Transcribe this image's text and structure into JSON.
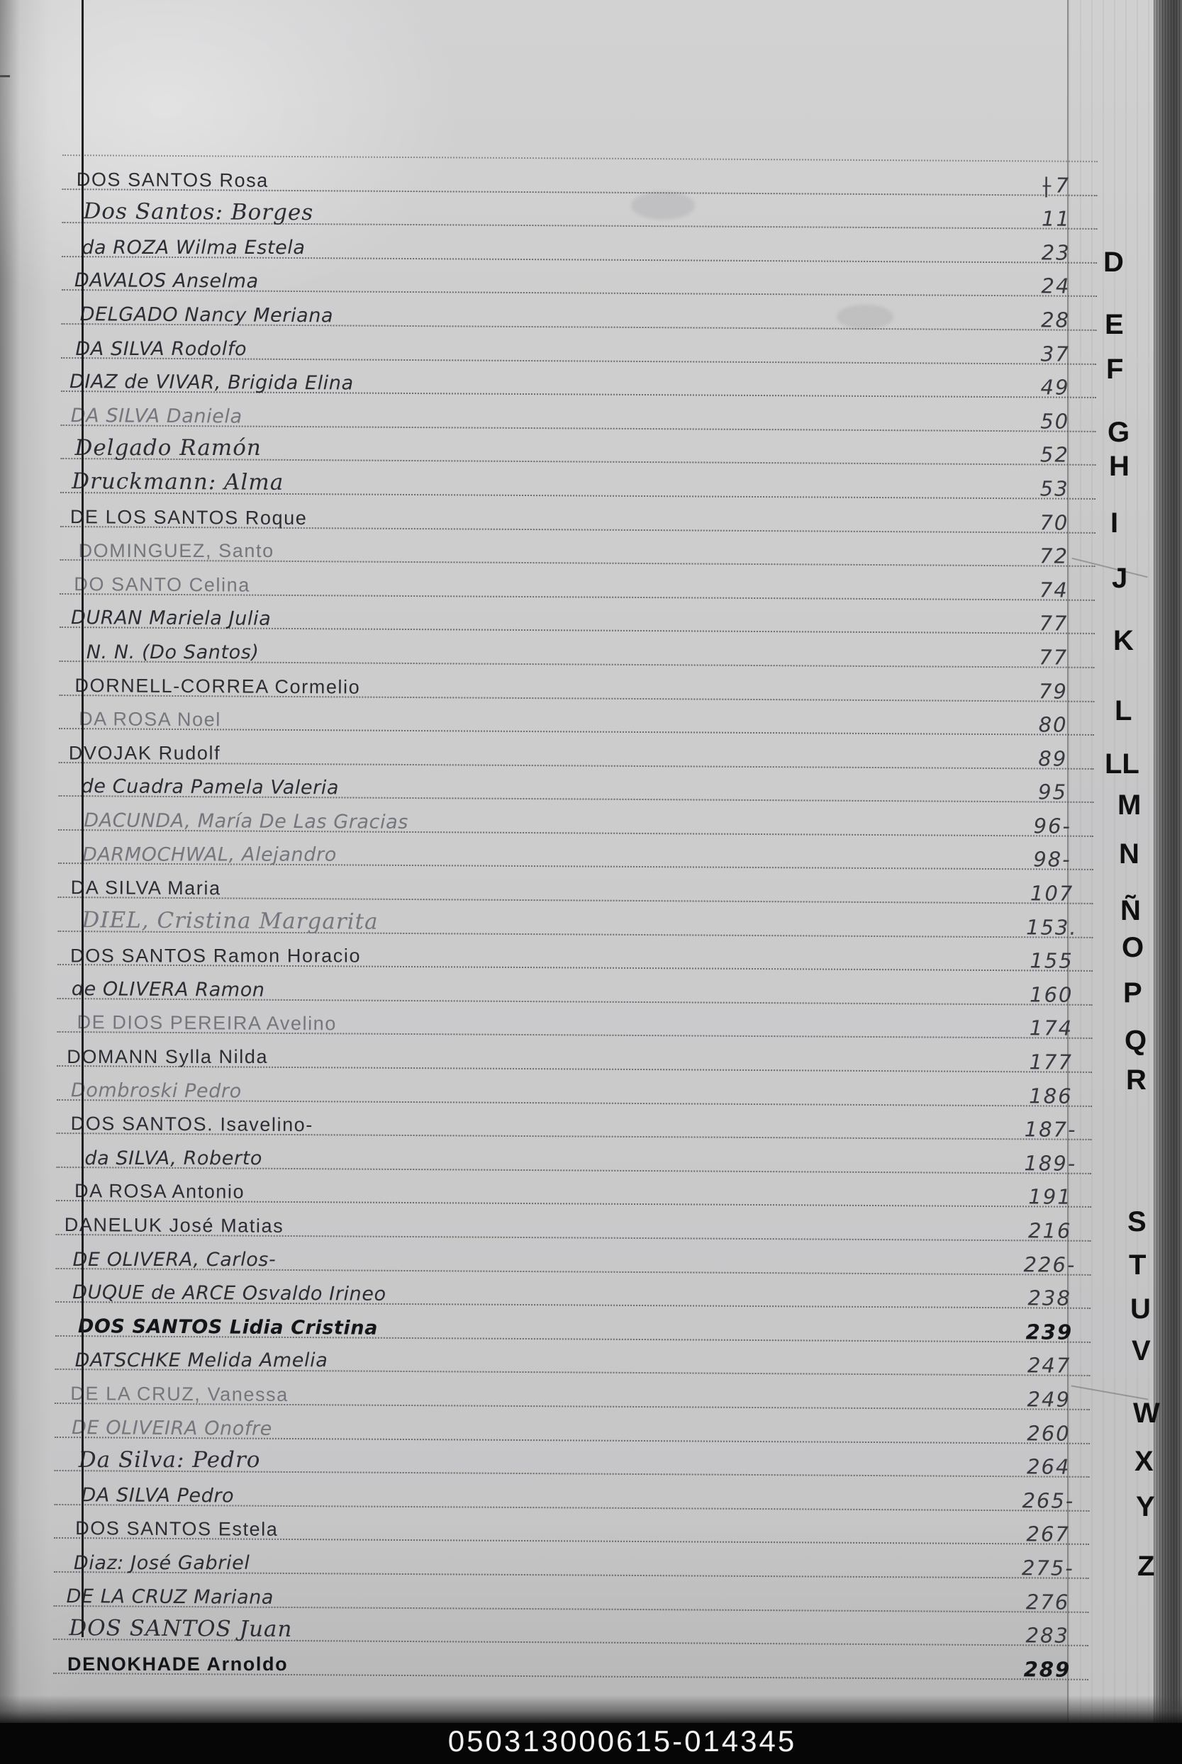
{
  "page": {
    "kind": "Scanned handwritten alphabetical index page - letter D",
    "footer_code": "050313000615-014345"
  },
  "index": {
    "entries": [
      {
        "name": "DOS SANTOS Rosa",
        "page": "7",
        "prefix": "|",
        "style": "caps",
        "indent": 8,
        "ink": "normal"
      },
      {
        "name": "Dos Santos: Borges",
        "page": "11",
        "style": "script",
        "indent": 18,
        "ink": "normal"
      },
      {
        "name": "da ROZA Wilma Estela",
        "page": "23",
        "style": "print",
        "indent": 16,
        "ink": "normal"
      },
      {
        "name": "DAVALOS Anselma",
        "page": "24",
        "style": "print",
        "indent": 6,
        "ink": "normal"
      },
      {
        "name": "DELGADO Nancy Meriana",
        "page": "28",
        "style": "print",
        "indent": 14,
        "ink": "normal"
      },
      {
        "name": "DA SILVA Rodolfo",
        "page": "37",
        "style": "print",
        "indent": 8,
        "ink": "normal"
      },
      {
        "name": "DIAZ de VIVAR, Brigida Elina",
        "page": "49",
        "style": "print",
        "indent": 0,
        "ink": "normal"
      },
      {
        "name": "DA SILVA Daniela",
        "page": "50",
        "style": "print",
        "indent": 2,
        "ink": "light"
      },
      {
        "name": "Delgado Ramón",
        "page": "52",
        "style": "script",
        "indent": 8,
        "ink": "normal"
      },
      {
        "name": "Druckmann: Alma",
        "page": "53",
        "style": "script",
        "indent": 4,
        "ink": "normal"
      },
      {
        "name": "DE LOS SANTOS Roque",
        "page": "70",
        "style": "caps",
        "indent": 2,
        "ink": "normal"
      },
      {
        "name": "DOMINGUEZ, Santo",
        "page": "72",
        "style": "caps",
        "indent": 14,
        "ink": "light"
      },
      {
        "name": "DO SANTO Celina",
        "page": "74",
        "style": "caps",
        "indent": 8,
        "ink": "light"
      },
      {
        "name": "DURAN Mariela Julia",
        "page": "77",
        "style": "print",
        "indent": 4,
        "ink": "normal"
      },
      {
        "name": "N. N. (Do Santos)",
        "page": "77",
        "style": "print",
        "indent": 26,
        "ink": "normal"
      },
      {
        "name": "DORNELL-CORREA Cormelio",
        "page": "79",
        "style": "caps",
        "indent": 10,
        "ink": "normal"
      },
      {
        "name": "DA ROSA Noel",
        "page": "80",
        "style": "caps",
        "indent": 16,
        "ink": "light"
      },
      {
        "name": "DVOJAK Rudolf",
        "page": "89",
        "style": "caps",
        "indent": 2,
        "ink": "normal"
      },
      {
        "name": "de Cuadra Pamela Valeria",
        "page": "95",
        "style": "print",
        "indent": 20,
        "ink": "normal"
      },
      {
        "name": "DACUNDA, María De Las Gracias",
        "page": "96-",
        "style": "print",
        "indent": 24,
        "ink": "light"
      },
      {
        "name": "DARMOCHWAL, Alejandro",
        "page": "98-",
        "style": "print",
        "indent": 22,
        "ink": "light"
      },
      {
        "name": "DA SILVA Maria",
        "page": "107",
        "style": "caps",
        "indent": 6,
        "ink": "normal"
      },
      {
        "name": "DIEL, Cristina Margarita",
        "page": "153.",
        "style": "script",
        "indent": 22,
        "ink": "light"
      },
      {
        "name": "DOS SANTOS Ramon Horacio",
        "page": "155",
        "style": "caps",
        "indent": 6,
        "ink": "normal"
      },
      {
        "name": "de OLIVERA Ramon",
        "page": "160",
        "style": "print",
        "indent": 8,
        "ink": "normal"
      },
      {
        "name": "DE DIOS PEREIRA Avelino",
        "page": "174",
        "style": "caps",
        "indent": 16,
        "ink": "light"
      },
      {
        "name": "DOMANN Sylla Nilda",
        "page": "177",
        "style": "caps",
        "indent": 2,
        "ink": "normal"
      },
      {
        "name": "Dombroski Pedro",
        "page": "186",
        "style": "print",
        "indent": 8,
        "ink": "light"
      },
      {
        "name": "DOS SANTOS. Isavelino-",
        "page": "187-",
        "style": "caps",
        "indent": 8,
        "ink": "normal"
      },
      {
        "name": "da SILVA, Roberto",
        "page": "189-",
        "style": "print",
        "indent": 28,
        "ink": "normal"
      },
      {
        "name": "DA ROSA Antonio",
        "page": "191",
        "style": "caps",
        "indent": 14,
        "ink": "normal"
      },
      {
        "name": "DANELUK José Matias",
        "page": "216",
        "style": "caps",
        "indent": 0,
        "ink": "normal"
      },
      {
        "name": "DE OLIVERA, Carlos-",
        "page": "226-",
        "style": "print",
        "indent": 12,
        "ink": "normal"
      },
      {
        "name": "DUQUE de ARCE Osvaldo Irineo",
        "page": "238",
        "style": "print",
        "indent": 12,
        "ink": "normal"
      },
      {
        "name": "DOS SANTOS Lidia Cristina",
        "page": "239",
        "style": "print",
        "indent": 20,
        "ink": "bold"
      },
      {
        "name": "DATSCHKE Melida Amelia",
        "page": "247",
        "style": "print",
        "indent": 16,
        "ink": "normal"
      },
      {
        "name": "DE LA CRUZ, Vanessa",
        "page": "249",
        "style": "caps",
        "indent": 10,
        "ink": "light"
      },
      {
        "name": "DE OLIVEIRA Onofre",
        "page": "260",
        "style": "print",
        "indent": 12,
        "ink": "light"
      },
      {
        "name": "Da Silva: Pedro",
        "page": "264",
        "style": "script",
        "indent": 22,
        "ink": "normal"
      },
      {
        "name": "DA SILVA Pedro",
        "page": "265-",
        "style": "print",
        "indent": 26,
        "ink": "normal"
      },
      {
        "name": "DOS SANTOS Estela",
        "page": "267",
        "style": "caps",
        "indent": 18,
        "ink": "normal"
      },
      {
        "name": "Diaz: José Gabriel",
        "page": "275-",
        "style": "print",
        "indent": 16,
        "ink": "normal"
      },
      {
        "name": "DE LA CRUZ Mariana",
        "page": "276",
        "style": "print",
        "indent": 6,
        "ink": "normal"
      },
      {
        "name": "DOS SANTOS Juan",
        "page": "283",
        "style": "script",
        "indent": 10,
        "ink": "normal"
      },
      {
        "name": "DENOKHADE Arnoldo",
        "page": "289",
        "style": "caps",
        "indent": 8,
        "ink": "bold"
      }
    ]
  },
  "tabs": {
    "letters": [
      "D",
      "E",
      "F",
      "G",
      "H",
      "I",
      "J",
      "K",
      "L",
      "LL",
      "M",
      "N",
      "Ñ",
      "O",
      "P",
      "Q",
      "R",
      "S",
      "T",
      "U",
      "V",
      "W",
      "X",
      "Y",
      "Z"
    ]
  }
}
